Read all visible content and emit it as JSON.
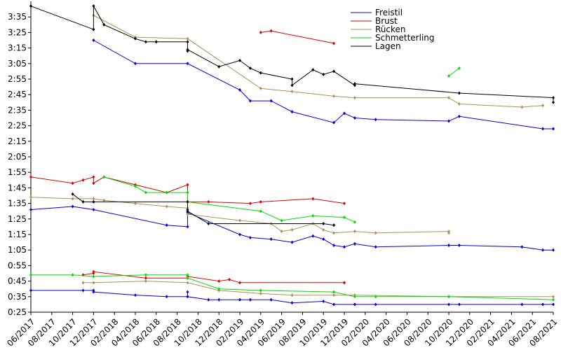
{
  "chart_data": {
    "type": "line",
    "xlim": [
      "06/2017",
      "08/2021"
    ],
    "xticks": [
      "06/2017",
      "08/2017",
      "10/2017",
      "12/2017",
      "02/2018",
      "04/2018",
      "06/2018",
      "08/2018",
      "10/2018",
      "12/2018",
      "02/2019",
      "04/2019",
      "06/2019",
      "08/2019",
      "10/2019",
      "12/2019",
      "02/2020",
      "04/2020",
      "06/2020",
      "08/2020",
      "10/2020",
      "12/2020",
      "02/2021",
      "04/2021",
      "06/2021",
      "08/2021"
    ],
    "ylim": [
      25,
      225
    ],
    "yticks": [
      {
        "value": 25,
        "label": "0:25"
      },
      {
        "value": 35,
        "label": "0:35"
      },
      {
        "value": 45,
        "label": "0:45"
      },
      {
        "value": 55,
        "label": "0:55"
      },
      {
        "value": 65,
        "label": "1:05"
      },
      {
        "value": 75,
        "label": "1:15"
      },
      {
        "value": 85,
        "label": "1:25"
      },
      {
        "value": 95,
        "label": "1:35"
      },
      {
        "value": 105,
        "label": "1:45"
      },
      {
        "value": 115,
        "label": "1:55"
      },
      {
        "value": 125,
        "label": "2:05"
      },
      {
        "value": 135,
        "label": "2:15"
      },
      {
        "value": 145,
        "label": "2:25"
      },
      {
        "value": 155,
        "label": "2:35"
      },
      {
        "value": 165,
        "label": "2:45"
      },
      {
        "value": 175,
        "label": "2:55"
      },
      {
        "value": 185,
        "label": "3:05"
      },
      {
        "value": 195,
        "label": "3:15"
      },
      {
        "value": 205,
        "label": "3:25"
      },
      {
        "value": 215,
        "label": "3:35"
      }
    ],
    "legend": "upper center",
    "series": [
      {
        "name": "Freistil",
        "color": "#0000dd",
        "x": [
          "12/2017",
          "04/2018",
          "09/2018",
          "02/2019",
          "03/2019",
          "05/2019",
          "07/2019",
          "11/2019",
          "12/2019",
          "01/2020",
          "03/2020",
          "10/2020",
          "11/2020",
          "07/2021",
          "08/2021"
        ],
        "values": [
          200,
          185,
          185,
          168,
          161,
          161,
          154,
          147,
          153,
          150,
          149,
          148,
          151,
          143,
          143
        ]
      },
      {
        "name": "Brust",
        "color": "#dd0000",
        "x": [
          "04/2019",
          "05/2019",
          "11/2019"
        ],
        "values": [
          205,
          206,
          198
        ]
      },
      {
        "name": "Rücken",
        "color": "#b09050",
        "x": [
          "12/2017",
          "04/2018",
          "09/2018",
          "04/2019",
          "07/2019",
          "11/2019",
          "01/2020",
          "10/2020",
          "11/2020",
          "05/2021",
          "07/2021"
        ],
        "values": [
          216,
          202,
          201,
          169,
          167,
          164,
          163,
          163,
          159,
          157,
          158
        ]
      },
      {
        "name": "Schmetterling",
        "color": "#00dd00",
        "x": [
          "10/2020",
          "11/2020"
        ],
        "values": [
          177,
          182
        ]
      },
      {
        "name": "Lagen",
        "color": "#000000",
        "x": [
          "06/2017",
          "12/2017",
          "12/2017",
          "01/2018",
          "04/2018",
          "05/2018",
          "06/2018",
          "09/2018",
          "09/2018",
          "09/2018",
          "12/2018",
          "02/2019",
          "03/2019",
          "04/2019",
          "07/2019",
          "07/2019",
          "09/2019",
          "10/2019",
          "11/2019",
          "01/2020",
          "01/2020",
          "11/2020",
          "08/2021",
          "08/2021"
        ],
        "values": [
          222,
          207,
          222,
          210,
          201,
          199,
          199,
          199,
          193,
          194,
          183,
          187,
          182,
          179,
          175,
          171,
          181,
          178,
          180,
          171,
          172,
          166,
          163,
          160
        ]
      },
      {
        "color": "#0000dd",
        "x": [
          "06/2017",
          "10/2017",
          "12/2017",
          "07/2018",
          "09/2018",
          "09/2018",
          "09/2018",
          "02/2019",
          "03/2019",
          "05/2019",
          "07/2019",
          "09/2019",
          "10/2019",
          "11/2019",
          "12/2019",
          "01/2020",
          "01/2020",
          "03/2020",
          "10/2020",
          "11/2020",
          "05/2021",
          "07/2021",
          "08/2021"
        ],
        "values": [
          91,
          93,
          91,
          81,
          80,
          91,
          89,
          75,
          73,
          72,
          70,
          74,
          72,
          68,
          67,
          69,
          69,
          67,
          68,
          68,
          67,
          65,
          65
        ]
      },
      {
        "color": "#dd0000",
        "x": [
          "06/2017",
          "10/2017",
          "11/2017",
          "12/2017",
          "12/2017",
          "01/2018",
          "04/2018",
          "07/2018",
          "09/2018",
          "09/2018",
          "11/2018",
          "03/2019",
          "04/2019",
          "09/2019",
          "12/2019"
        ],
        "values": [
          112,
          108,
          110,
          112,
          108,
          112,
          107,
          102,
          107,
          96,
          96,
          95,
          96,
          98,
          95
        ]
      },
      {
        "color": "#b09050",
        "x": [
          "06/2017",
          "10/2017",
          "12/2017",
          "01/2018",
          "04/2018",
          "07/2018",
          "09/2018",
          "09/2018",
          "02/2019",
          "05/2019",
          "06/2019",
          "07/2019",
          "09/2019",
          "10/2019",
          "11/2019",
          "01/2020",
          "03/2020",
          "10/2020",
          "10/2020"
        ],
        "values": [
          99,
          98,
          98,
          97,
          95,
          93,
          92,
          88,
          84,
          82,
          77,
          78,
          82,
          78,
          76,
          77,
          76,
          77,
          76
        ]
      },
      {
        "color": "#00dd00",
        "x": [
          "01/2018",
          "04/2018",
          "05/2018",
          "07/2018",
          "09/2018",
          "09/2018",
          "04/2019",
          "06/2019",
          "09/2019",
          "12/2019",
          "01/2020"
        ],
        "values": [
          112,
          106,
          102,
          102,
          102,
          96,
          90,
          84,
          87,
          86,
          83
        ]
      },
      {
        "color": "#000000",
        "x": [
          "10/2017",
          "11/2017",
          "12/2017",
          "09/2018",
          "09/2018",
          "11/2018",
          "10/2019",
          "11/2019"
        ],
        "values": [
          101,
          96,
          96,
          96,
          90,
          82,
          82,
          81
        ]
      },
      {
        "color": "#0000dd",
        "x": [
          "06/2017",
          "11/2017",
          "12/2017",
          "12/2017",
          "04/2018",
          "07/2018",
          "09/2018",
          "09/2018",
          "09/2018",
          "11/2018",
          "12/2018",
          "02/2019",
          "03/2019",
          "05/2019",
          "07/2019",
          "10/2019",
          "11/2019",
          "01/2020",
          "01/2020",
          "03/2020",
          "10/2020",
          "11/2020",
          "05/2021",
          "07/2021",
          "08/2021"
        ],
        "values": [
          39,
          39,
          39,
          38,
          36,
          35,
          35,
          38,
          35,
          33,
          33,
          33,
          33,
          33,
          31,
          32,
          30,
          30,
          30,
          30,
          30,
          30,
          30,
          30,
          30
        ]
      },
      {
        "color": "#dd0000",
        "x": [
          "11/2017",
          "12/2017",
          "12/2017",
          "05/2018",
          "09/2018",
          "09/2018",
          "12/2018",
          "01/2019",
          "02/2019",
          "12/2019",
          "12/2019"
        ],
        "values": [
          49,
          50,
          51,
          47,
          47,
          48,
          45,
          46,
          44,
          44,
          44
        ]
      },
      {
        "color": "#b09050",
        "x": [
          "11/2017",
          "12/2017",
          "05/2018",
          "09/2018",
          "12/2018",
          "04/2019",
          "07/2019",
          "11/2019",
          "01/2020",
          "10/2020",
          "08/2021"
        ],
        "values": [
          44,
          44,
          45,
          44,
          39,
          37,
          36,
          36,
          36,
          35,
          35
        ]
      },
      {
        "color": "#00dd00",
        "x": [
          "06/2017",
          "10/2017",
          "12/2017",
          "05/2018",
          "09/2018",
          "09/2018",
          "12/2018",
          "04/2019",
          "11/2019",
          "01/2020",
          "03/2020",
          "10/2020",
          "08/2021"
        ],
        "values": [
          49,
          49,
          48,
          49,
          49,
          47,
          40,
          39,
          38,
          35,
          35,
          35,
          33
        ]
      }
    ]
  }
}
